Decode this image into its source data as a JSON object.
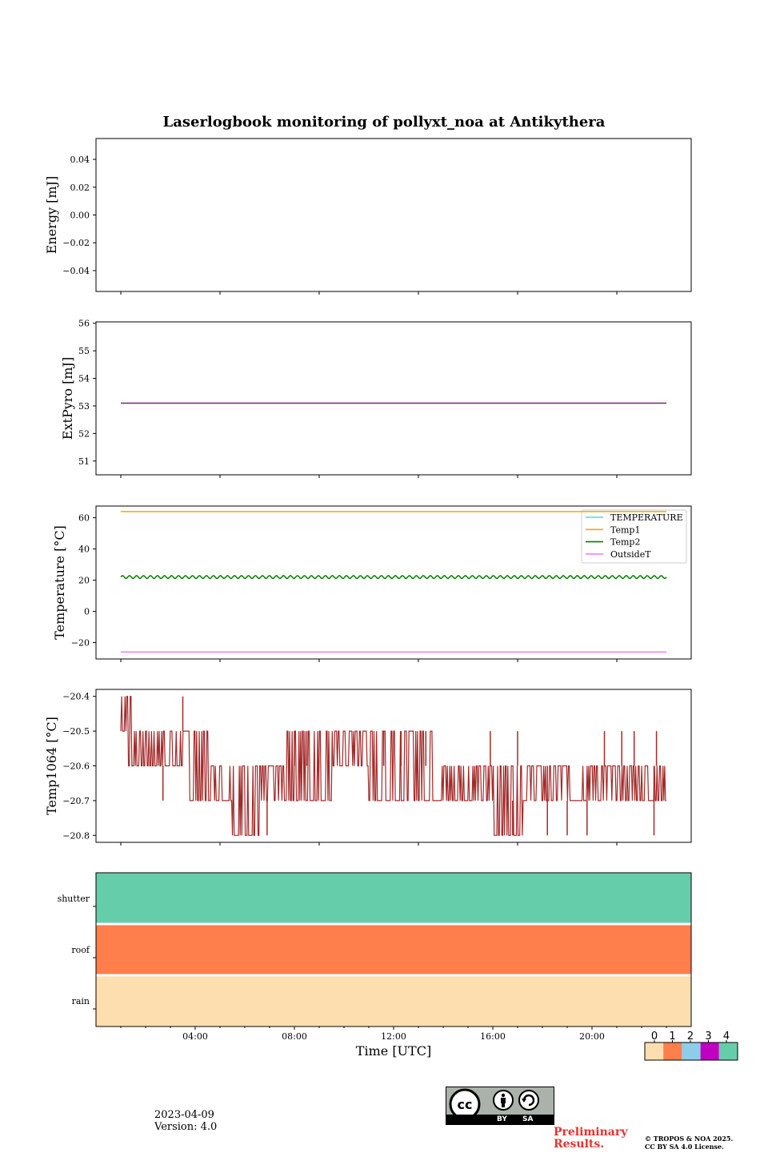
{
  "figure": {
    "title": "Laserlogbook monitoring of pollyxt_noa at Antikythera",
    "date": "2023-04-09",
    "version": "Version: 4.0",
    "preliminary": "Preliminary",
    "results": "Results.",
    "copyright_line1": "© TROPOS & NOA 2025.",
    "copyright_line2": "CC BY SA 4.0 License.",
    "license_badge": {
      "by": "BY",
      "sa": "SA",
      "icons": [
        "cc-icon",
        "person-icon",
        "share-alike-icon"
      ]
    }
  },
  "chart_data": [
    {
      "type": "line",
      "id": "energy",
      "ylabel": "Energy [mJ]",
      "ylim": [
        -0.055,
        0.055
      ],
      "yticks": [
        0.04,
        0.02,
        0.0,
        -0.02,
        -0.04
      ],
      "yticklabels": [
        "0.04",
        "0.02",
        "0.00",
        "−0.02",
        "−0.04"
      ],
      "series": []
    },
    {
      "type": "line",
      "id": "extpyro",
      "ylabel": "ExtPyro [mJ]",
      "ylim": [
        50.5,
        56.05
      ],
      "yticks": [
        56,
        55,
        54,
        53,
        52,
        51
      ],
      "series": [
        {
          "x": [
            1,
            23
          ],
          "y": [
            53.1,
            53.1
          ],
          "color": "#7b1f7b"
        }
      ]
    },
    {
      "type": "line",
      "id": "temperature",
      "ylabel": "Temperature [°C]",
      "ylim": [
        -30.5,
        67.5
      ],
      "yticks": [
        60,
        40,
        20,
        0,
        -20
      ],
      "yticklabels": [
        "60",
        "40",
        "20",
        "0",
        "−20"
      ],
      "legend": "top-right",
      "series": [
        {
          "name": "TEMPERATURE",
          "color": "#40e0e0",
          "x": [],
          "y": []
        },
        {
          "name": "Temp1",
          "color": "#ffa500",
          "x": [
            1,
            23
          ],
          "y": [
            64,
            64
          ]
        },
        {
          "name": "Temp2",
          "color": "#008000",
          "mean": 22,
          "amplitude": 0.9,
          "x": [
            1,
            23
          ]
        },
        {
          "name": "OutsideT",
          "color": "#ee82ee",
          "x": [
            1,
            23
          ],
          "y": [
            -26,
            -26
          ]
        }
      ]
    },
    {
      "type": "line",
      "id": "temp1064",
      "ylabel": "Temp1064 [°C]",
      "ylim": [
        -20.82,
        -20.38
      ],
      "yticks": [
        -20.4,
        -20.5,
        -20.6,
        -20.7,
        -20.8
      ],
      "yticklabels": [
        "−20.4",
        "−20.5",
        "−20.6",
        "−20.7",
        "−20.8"
      ],
      "series": [
        {
          "color": "#a52a2a",
          "x_start": 1,
          "x_end": 23,
          "segments": [
            {
              "x0": 1.0,
              "x1": 1.25,
              "lo": -20.5,
              "hi": -20.4
            },
            {
              "x0": 1.25,
              "x1": 1.5,
              "lo": -20.6,
              "hi": -20.4
            },
            {
              "x0": 1.5,
              "x1": 3.0,
              "lo": -20.6,
              "hi": -20.5
            },
            {
              "x0": 3.0,
              "x1": 3.6,
              "lo": -20.6,
              "hi": -20.5
            },
            {
              "x0": 3.6,
              "x1": 4.6,
              "lo": -20.7,
              "hi": -20.5
            },
            {
              "x0": 4.6,
              "x1": 5.5,
              "lo": -20.7,
              "hi": -20.6
            },
            {
              "x0": 5.5,
              "x1": 6.6,
              "lo": -20.8,
              "hi": -20.6
            },
            {
              "x0": 6.6,
              "x1": 7.7,
              "lo": -20.7,
              "hi": -20.6
            },
            {
              "x0": 7.7,
              "x1": 9.5,
              "lo": -20.7,
              "hi": -20.5
            },
            {
              "x0": 9.5,
              "x1": 11.0,
              "lo": -20.6,
              "hi": -20.5
            },
            {
              "x0": 11.0,
              "x1": 13.8,
              "lo": -20.7,
              "hi": -20.5
            },
            {
              "x0": 13.8,
              "x1": 16.0,
              "lo": -20.7,
              "hi": -20.6
            },
            {
              "x0": 16.0,
              "x1": 17.2,
              "lo": -20.8,
              "hi": -20.6
            },
            {
              "x0": 17.2,
              "x1": 19.5,
              "lo": -20.7,
              "hi": -20.6
            },
            {
              "x0": 19.5,
              "x1": 23.0,
              "lo": -20.7,
              "hi": -20.6
            }
          ],
          "spikes": [
            {
              "x": 3.5,
              "from": -20.5,
              "to": -20.4
            },
            {
              "x": 2.7,
              "from": -20.6,
              "to": -20.7
            },
            {
              "x": 6.9,
              "from": -20.7,
              "to": -20.8
            },
            {
              "x": 8.0,
              "from": -20.6,
              "to": -20.5
            },
            {
              "x": 8.5,
              "from": -20.6,
              "to": -20.5
            },
            {
              "x": 11.6,
              "from": -20.6,
              "to": -20.5
            },
            {
              "x": 12.3,
              "from": -20.6,
              "to": -20.5
            },
            {
              "x": 13.3,
              "from": -20.6,
              "to": -20.5
            },
            {
              "x": 15.9,
              "from": -20.6,
              "to": -20.5
            },
            {
              "x": 16.8,
              "from": -20.7,
              "to": -20.8
            },
            {
              "x": 17.0,
              "from": -20.6,
              "to": -20.5
            },
            {
              "x": 18.2,
              "from": -20.6,
              "to": -20.8
            },
            {
              "x": 19.0,
              "from": -20.7,
              "to": -20.8
            },
            {
              "x": 19.8,
              "from": -20.7,
              "to": -20.8
            },
            {
              "x": 20.5,
              "from": -20.6,
              "to": -20.5
            },
            {
              "x": 21.2,
              "from": -20.6,
              "to": -20.5
            },
            {
              "x": 21.7,
              "from": -20.6,
              "to": -20.5
            },
            {
              "x": 22.5,
              "from": -20.6,
              "to": -20.8
            },
            {
              "x": 22.6,
              "from": -20.6,
              "to": -20.5
            }
          ]
        }
      ]
    },
    {
      "type": "heatmap",
      "id": "status",
      "xlabel": "Time [UTC]",
      "xlim": [
        0,
        24
      ],
      "xticks": [
        4,
        8,
        12,
        16,
        20
      ],
      "xticklabels": [
        "04:00",
        "08:00",
        "12:00",
        "16:00",
        "20:00"
      ],
      "rows": [
        "shutter",
        "roof",
        "rain"
      ],
      "values": [
        4,
        1,
        0
      ],
      "colorbar": {
        "ticks": [
          "0",
          "1",
          "2",
          "3",
          "4"
        ],
        "colors": [
          "#fddfaf",
          "#fe7e4c",
          "#8ecde8",
          "#c000c0",
          "#66cdaa"
        ]
      }
    }
  ]
}
